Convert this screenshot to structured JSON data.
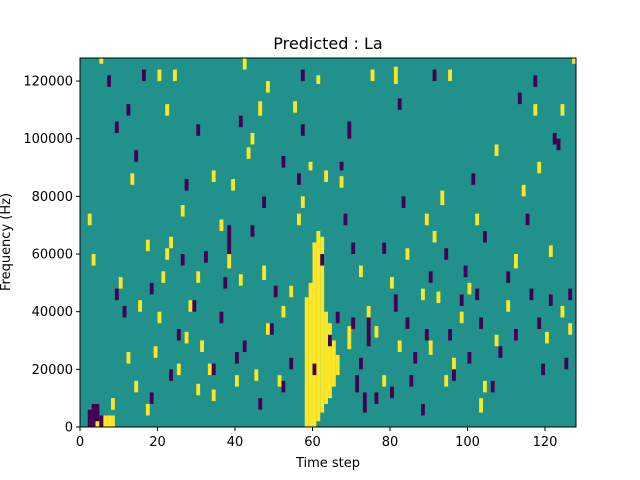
{
  "chart_data": {
    "type": "heatmap",
    "title": "Predicted : La",
    "xlabel": "Time step",
    "ylabel": "Frequency (Hz)",
    "xlim": [
      0,
      128
    ],
    "ylim": [
      0,
      128000
    ],
    "xticks": [
      0,
      20,
      40,
      60,
      80,
      100,
      120
    ],
    "yticks": [
      0,
      20000,
      40000,
      60000,
      80000,
      100000,
      120000
    ],
    "xtick_labels": [
      "0",
      "20",
      "40",
      "60",
      "80",
      "100",
      "120"
    ],
    "ytick_labels": [
      "0",
      "20000",
      "40000",
      "60000",
      "80000",
      "100000",
      "120000"
    ],
    "grid": false,
    "colors": {
      "background": "#21918c",
      "low": "#440154",
      "high": "#fde725"
    },
    "time_bins": 128,
    "freq_bins": 128,
    "hz_per_bin": 1000,
    "high_cells": [
      [
        4,
        0,
        4
      ],
      [
        6,
        0,
        4
      ],
      [
        7,
        0,
        4
      ],
      [
        8,
        0,
        4
      ],
      [
        58,
        0,
        45
      ],
      [
        59,
        0,
        50
      ],
      [
        60,
        0,
        64
      ],
      [
        61,
        2,
        68
      ],
      [
        62,
        5,
        66
      ],
      [
        63,
        8,
        40
      ],
      [
        64,
        10,
        36
      ],
      [
        65,
        14,
        30
      ],
      [
        66,
        18,
        25
      ],
      [
        67,
        22,
        20
      ],
      [
        68,
        25,
        15
      ],
      [
        5,
        126,
        128
      ],
      [
        127,
        126,
        128
      ],
      [
        20,
        120,
        124
      ],
      [
        24,
        120,
        124
      ],
      [
        42,
        124,
        128
      ],
      [
        75,
        120,
        124
      ],
      [
        81,
        119,
        125
      ],
      [
        95,
        120,
        124
      ],
      [
        55,
        109,
        113
      ],
      [
        22,
        108,
        112
      ],
      [
        46,
        108,
        113
      ],
      [
        48,
        116,
        120
      ],
      [
        61,
        119,
        122
      ],
      [
        8,
        6,
        10
      ],
      [
        12,
        22,
        26
      ],
      [
        14,
        12,
        16
      ],
      [
        17,
        4,
        8
      ],
      [
        19,
        24,
        28
      ],
      [
        20,
        36,
        40
      ],
      [
        21,
        50,
        54
      ],
      [
        22,
        58,
        62
      ],
      [
        25,
        18,
        22
      ],
      [
        27,
        29,
        33
      ],
      [
        28,
        40,
        44
      ],
      [
        30,
        11,
        15
      ],
      [
        31,
        26,
        30
      ],
      [
        33,
        18,
        22
      ],
      [
        34,
        9,
        13
      ],
      [
        36,
        68,
        72
      ],
      [
        38,
        55,
        60
      ],
      [
        40,
        14,
        18
      ],
      [
        41,
        49,
        53
      ],
      [
        45,
        16,
        20
      ],
      [
        47,
        51,
        56
      ],
      [
        48,
        32,
        36
      ],
      [
        52,
        38,
        42
      ],
      [
        54,
        45,
        49
      ],
      [
        57,
        76,
        80
      ],
      [
        59,
        89,
        92
      ],
      [
        63,
        85,
        89
      ],
      [
        67,
        83,
        87
      ],
      [
        69,
        27,
        35
      ],
      [
        72,
        52,
        56
      ],
      [
        74,
        38,
        42
      ],
      [
        76,
        31,
        35
      ],
      [
        78,
        14,
        18
      ],
      [
        80,
        48,
        52
      ],
      [
        82,
        26,
        30
      ],
      [
        84,
        58,
        62
      ],
      [
        88,
        44,
        48
      ],
      [
        89,
        70,
        74
      ],
      [
        90,
        25,
        30
      ],
      [
        91,
        64,
        68
      ],
      [
        92,
        43,
        47
      ],
      [
        93,
        77,
        82
      ],
      [
        94,
        14,
        18
      ],
      [
        96,
        20,
        24
      ],
      [
        98,
        36,
        40
      ],
      [
        100,
        46,
        50
      ],
      [
        102,
        70,
        74
      ],
      [
        103,
        5,
        10
      ],
      [
        104,
        12,
        16
      ],
      [
        107,
        28,
        32
      ],
      [
        110,
        40,
        44
      ],
      [
        112,
        55,
        60
      ],
      [
        114,
        80,
        84
      ],
      [
        118,
        88,
        92
      ],
      [
        120,
        29,
        33
      ],
      [
        121,
        59,
        63
      ],
      [
        124,
        38,
        42
      ],
      [
        126,
        32,
        36
      ],
      [
        128,
        28,
        32
      ],
      [
        2,
        70,
        74
      ],
      [
        3,
        56,
        60
      ],
      [
        10,
        48,
        52
      ],
      [
        15,
        40,
        44
      ],
      [
        17,
        61,
        65
      ],
      [
        23,
        62,
        66
      ],
      [
        26,
        73,
        77
      ],
      [
        30,
        50,
        54
      ],
      [
        34,
        85,
        89
      ],
      [
        39,
        82,
        86
      ],
      [
        43,
        93,
        97
      ],
      [
        51,
        14,
        18
      ],
      [
        56,
        70,
        74
      ],
      [
        13,
        84,
        88
      ],
      [
        44,
        98,
        102
      ],
      [
        107,
        94,
        98
      ],
      [
        117,
        108,
        112
      ],
      [
        124,
        108,
        112
      ]
    ],
    "low_cells": [
      [
        2,
        0,
        6
      ],
      [
        3,
        0,
        8
      ],
      [
        4,
        2,
        8
      ],
      [
        5,
        0,
        4
      ],
      [
        7,
        118,
        122
      ],
      [
        9,
        44,
        48
      ],
      [
        11,
        38,
        42
      ],
      [
        12,
        108,
        112
      ],
      [
        14,
        92,
        96
      ],
      [
        16,
        120,
        124
      ],
      [
        18,
        8,
        12
      ],
      [
        23,
        16,
        20
      ],
      [
        25,
        30,
        34
      ],
      [
        27,
        82,
        86
      ],
      [
        29,
        40,
        44
      ],
      [
        30,
        101,
        105
      ],
      [
        32,
        57,
        61
      ],
      [
        34,
        18,
        22
      ],
      [
        36,
        36,
        40
      ],
      [
        37,
        48,
        52
      ],
      [
        38,
        60,
        70
      ],
      [
        40,
        22,
        26
      ],
      [
        41,
        104,
        108
      ],
      [
        44,
        66,
        70
      ],
      [
        46,
        6,
        10
      ],
      [
        47,
        76,
        80
      ],
      [
        49,
        32,
        36
      ],
      [
        50,
        45,
        49
      ],
      [
        52,
        90,
        94
      ],
      [
        54,
        20,
        24
      ],
      [
        56,
        84,
        88
      ],
      [
        57,
        101,
        105
      ],
      [
        57,
        120,
        124
      ],
      [
        60,
        18,
        22
      ],
      [
        62,
        56,
        60
      ],
      [
        64,
        28,
        32
      ],
      [
        66,
        36,
        40
      ],
      [
        67,
        89,
        92
      ],
      [
        68,
        70,
        74
      ],
      [
        69,
        100,
        106
      ],
      [
        70,
        60,
        64
      ],
      [
        71,
        12,
        18
      ],
      [
        72,
        20,
        24
      ],
      [
        73,
        5,
        12
      ],
      [
        74,
        28,
        38
      ],
      [
        76,
        8,
        12
      ],
      [
        78,
        60,
        64
      ],
      [
        80,
        10,
        14
      ],
      [
        81,
        40,
        46
      ],
      [
        82,
        110,
        114
      ],
      [
        83,
        76,
        80
      ],
      [
        84,
        34,
        38
      ],
      [
        85,
        14,
        18
      ],
      [
        86,
        22,
        26
      ],
      [
        88,
        4,
        8
      ],
      [
        89,
        30,
        34
      ],
      [
        90,
        50,
        54
      ],
      [
        91,
        120,
        124
      ],
      [
        94,
        58,
        62
      ],
      [
        95,
        30,
        34
      ],
      [
        96,
        16,
        20
      ],
      [
        98,
        42,
        46
      ],
      [
        99,
        52,
        56
      ],
      [
        100,
        22,
        26
      ],
      [
        101,
        84,
        88
      ],
      [
        102,
        44,
        48
      ],
      [
        103,
        34,
        38
      ],
      [
        104,
        64,
        68
      ],
      [
        106,
        12,
        16
      ],
      [
        108,
        24,
        28
      ],
      [
        110,
        50,
        54
      ],
      [
        112,
        30,
        34
      ],
      [
        113,
        112,
        116
      ],
      [
        115,
        70,
        74
      ],
      [
        116,
        44,
        48
      ],
      [
        117,
        118,
        122
      ],
      [
        118,
        34,
        38
      ],
      [
        119,
        18,
        22
      ],
      [
        121,
        42,
        46
      ],
      [
        122,
        98,
        102
      ],
      [
        123,
        96,
        100
      ],
      [
        125,
        20,
        24
      ],
      [
        126,
        44,
        48
      ],
      [
        9,
        102,
        106
      ],
      [
        26,
        56,
        60
      ],
      [
        18,
        46,
        50
      ],
      [
        42,
        26,
        30
      ],
      [
        52,
        12,
        16
      ],
      [
        70,
        34,
        38
      ]
    ]
  }
}
